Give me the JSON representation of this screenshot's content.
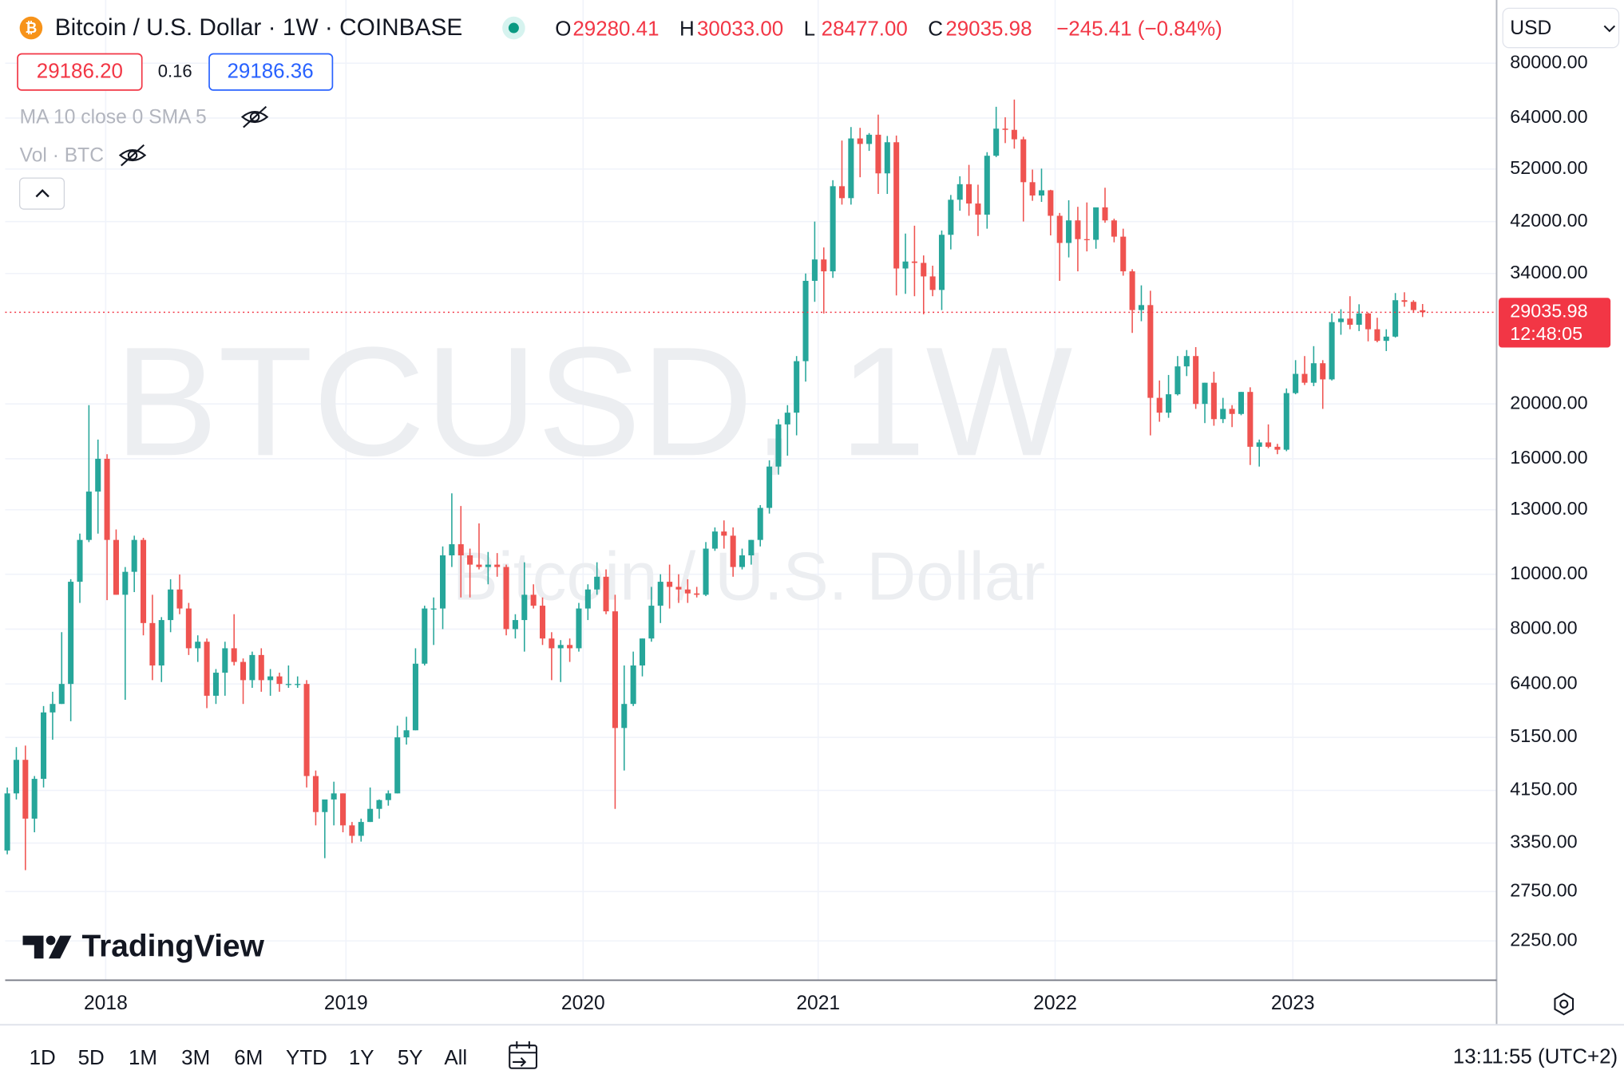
{
  "header": {
    "symbol_icon": "₿",
    "title": "Bitcoin / U.S. Dollar · 1W · COINBASE",
    "ohlc": [
      {
        "key": "O",
        "value": "29280.41"
      },
      {
        "key": "H",
        "value": "30033.00"
      },
      {
        "key": "L",
        "value": "28477.00"
      },
      {
        "key": "C",
        "value": "29035.98"
      }
    ],
    "change": "−245.41 (−0.84%)",
    "currency": "USD",
    "sell": "29186.20",
    "spread": "0.16",
    "buy": "29186.36",
    "indicators": [
      "MA 10 close 0 SMA 5",
      "Vol · BTC"
    ]
  },
  "watermark": {
    "symbol": "BTCUSD, 1W",
    "description": "Bitcoin / U.S. Dollar"
  },
  "logo": "TradingView",
  "chart_data": {
    "type": "candlestick",
    "up_color": "#26a69a",
    "down_color": "#ef5350",
    "log_scale": true,
    "grid": true,
    "countdown": "12:48:05",
    "xlim": [
      -0.23,
      164.16
    ],
    "xticks": [
      {
        "value": 10.85,
        "label": "2018"
      },
      {
        "value": 37.33,
        "label": "2019"
      },
      {
        "value": 63.47,
        "label": "2020"
      },
      {
        "value": 89.38,
        "label": "2021"
      },
      {
        "value": 115.5,
        "label": "2022"
      },
      {
        "value": 141.7,
        "label": "2023"
      }
    ],
    "ylim": [
      1917,
      101300
    ],
    "yticks": [
      {
        "value": 2250,
        "label": "2250.00"
      },
      {
        "value": 2750,
        "label": "2750.00"
      },
      {
        "value": 3350,
        "label": "3350.00"
      },
      {
        "value": 4150,
        "label": "4150.00"
      },
      {
        "value": 5150,
        "label": "5150.00"
      },
      {
        "value": 6400,
        "label": "6400.00"
      },
      {
        "value": 8000,
        "label": "8000.00"
      },
      {
        "value": 10000,
        "label": "10000.00"
      },
      {
        "value": 13000,
        "label": "13000.00"
      },
      {
        "value": 16000,
        "label": "16000.00"
      },
      {
        "value": 20000,
        "label": "20000.00"
      },
      {
        "value": 34000,
        "label": "34000.00"
      },
      {
        "value": 42000,
        "label": "42000.00"
      },
      {
        "value": 52000,
        "label": "52000.00"
      },
      {
        "value": 64000,
        "label": "64000.00"
      },
      {
        "value": 80000,
        "label": "80000.00"
      }
    ],
    "candles": [
      [
        3250,
        4200,
        3200,
        4100
      ],
      [
        4100,
        4950,
        4000,
        4700
      ],
      [
        4700,
        4980,
        3000,
        3700
      ],
      [
        3700,
        4400,
        3500,
        4350
      ],
      [
        4350,
        5850,
        4200,
        5700
      ],
      [
        5700,
        6200,
        5100,
        5900
      ],
      [
        5900,
        7900,
        5900,
        6400
      ],
      [
        6400,
        9800,
        5500,
        9700
      ],
      [
        9700,
        11800,
        8900,
        11500
      ],
      [
        11500,
        19900,
        11400,
        14000
      ],
      [
        14000,
        17300,
        11800,
        16000
      ],
      [
        16000,
        16300,
        9000,
        11500
      ],
      [
        11500,
        12000,
        9200,
        9200
      ],
      [
        9200,
        10300,
        6000,
        10100
      ],
      [
        10100,
        11700,
        9300,
        11500
      ],
      [
        11500,
        11600,
        7800,
        8200
      ],
      [
        8200,
        9200,
        6500,
        6900
      ],
      [
        6900,
        8400,
        6450,
        8300
      ],
      [
        8300,
        9800,
        7900,
        9400
      ],
      [
        9400,
        9990,
        8500,
        8700
      ],
      [
        8700,
        8900,
        7200,
        7400
      ],
      [
        7400,
        7800,
        7000,
        7600
      ],
      [
        7600,
        7700,
        5800,
        6100
      ],
      [
        6100,
        6800,
        5900,
        6700
      ],
      [
        6700,
        7600,
        6100,
        7400
      ],
      [
        7400,
        8500,
        6900,
        7000
      ],
      [
        7000,
        7100,
        5900,
        6500
      ],
      [
        6500,
        7300,
        6300,
        7200
      ],
      [
        7200,
        7400,
        6200,
        6500
      ],
      [
        6500,
        6800,
        6100,
        6600
      ],
      [
        6600,
        6700,
        6200,
        6400
      ],
      [
        6400,
        6900,
        6300,
        6400
      ],
      [
        6400,
        6600,
        6300,
        6400
      ],
      [
        6400,
        6500,
        4200,
        4400
      ],
      [
        4400,
        4500,
        3600,
        3800
      ],
      [
        3800,
        3900,
        3150,
        4000
      ],
      [
        4000,
        4300,
        3600,
        4100
      ],
      [
        4100,
        4100,
        3500,
        3600
      ],
      [
        3600,
        3650,
        3350,
        3450
      ],
      [
        3450,
        3700,
        3370,
        3650
      ],
      [
        3650,
        4200,
        3650,
        3850
      ],
      [
        3850,
        4000,
        3700,
        3990
      ],
      [
        3990,
        4150,
        3900,
        4100
      ],
      [
        4100,
        5400,
        4100,
        5150
      ],
      [
        5150,
        5600,
        5000,
        5300
      ],
      [
        5300,
        7400,
        5300,
        6950
      ],
      [
        6950,
        8800,
        6900,
        8700
      ],
      [
        8700,
        9100,
        7500,
        8700
      ],
      [
        8700,
        11200,
        8000,
        10800
      ],
      [
        10800,
        13900,
        10300,
        11300
      ],
      [
        11300,
        13200,
        9100,
        10800
      ],
      [
        10800,
        11100,
        9100,
        10400
      ],
      [
        10400,
        12300,
        10200,
        10300
      ],
      [
        10300,
        10950,
        9600,
        10400
      ],
      [
        10400,
        10900,
        9900,
        10300
      ],
      [
        10300,
        10400,
        7800,
        8000
      ],
      [
        8000,
        8500,
        7700,
        8300
      ],
      [
        8300,
        10500,
        7300,
        9200
      ],
      [
        9200,
        9600,
        8700,
        8800
      ],
      [
        8800,
        9100,
        7500,
        7700
      ],
      [
        7700,
        7900,
        6500,
        7400
      ],
      [
        7400,
        7650,
        6450,
        7500
      ],
      [
        7500,
        7700,
        7000,
        7400
      ],
      [
        7400,
        8900,
        7300,
        8700
      ],
      [
        8700,
        9600,
        8300,
        9400
      ],
      [
        9400,
        10500,
        9200,
        9900
      ],
      [
        9900,
        10200,
        8500,
        8600
      ],
      [
        8600,
        9200,
        3850,
        5350
      ],
      [
        5350,
        6900,
        4500,
        5900
      ],
      [
        5900,
        7300,
        5850,
        6900
      ],
      [
        6900,
        7700,
        6600,
        7700
      ],
      [
        7700,
        9500,
        7600,
        8800
      ],
      [
        8800,
        10000,
        8200,
        9700
      ],
      [
        9700,
        10400,
        8700,
        9500
      ],
      [
        9500,
        10000,
        8900,
        9400
      ],
      [
        9400,
        9800,
        8900,
        9250
      ],
      [
        9250,
        9500,
        9100,
        9200
      ],
      [
        9200,
        11400,
        9150,
        11100
      ],
      [
        11100,
        12100,
        11000,
        11900
      ],
      [
        11900,
        12450,
        11100,
        11700
      ],
      [
        11700,
        12100,
        9900,
        10300
      ],
      [
        10300,
        11100,
        10200,
        10800
      ],
      [
        10800,
        11500,
        10400,
        11500
      ],
      [
        11500,
        13250,
        11200,
        13100
      ],
      [
        13100,
        15900,
        12800,
        15500
      ],
      [
        15500,
        18800,
        15000,
        18400
      ],
      [
        18400,
        19900,
        16200,
        19300
      ],
      [
        19300,
        24300,
        17600,
        23800
      ],
      [
        23800,
        34000,
        21900,
        33000
      ],
      [
        33000,
        42000,
        30300,
        36000
      ],
      [
        36000,
        37800,
        28900,
        34300
      ],
      [
        34300,
        49700,
        33400,
        48500
      ],
      [
        48500,
        58400,
        45000,
        46200
      ],
      [
        46200,
        61700,
        45000,
        58900
      ],
      [
        58900,
        61500,
        50300,
        57600
      ],
      [
        57600,
        60200,
        56000,
        59800
      ],
      [
        59800,
        64900,
        47000,
        51100
      ],
      [
        51100,
        59500,
        47000,
        58000
      ],
      [
        58000,
        59600,
        31100,
        34700
      ],
      [
        34700,
        40000,
        31300,
        35700
      ],
      [
        35700,
        41300,
        31000,
        35500
      ],
      [
        35500,
        36600,
        28800,
        33600
      ],
      [
        33600,
        35100,
        31000,
        31800
      ],
      [
        31800,
        40500,
        29300,
        39800
      ],
      [
        39800,
        46800,
        37500,
        45900
      ],
      [
        45900,
        50500,
        43900,
        48900
      ],
      [
        48900,
        52900,
        43000,
        45200
      ],
      [
        45200,
        48800,
        39600,
        43200
      ],
      [
        43200,
        55700,
        40800,
        54900
      ],
      [
        54900,
        67000,
        54600,
        61300
      ],
      [
        61300,
        64200,
        57800,
        61000
      ],
      [
        61000,
        69000,
        56500,
        58700
      ],
      [
        58700,
        59300,
        42000,
        49300
      ],
      [
        49300,
        51900,
        45700,
        46700
      ],
      [
        46700,
        52100,
        45500,
        47700
      ],
      [
        47700,
        47800,
        39700,
        43000
      ],
      [
        43000,
        43500,
        33000,
        38500
      ],
      [
        38500,
        45800,
        36300,
        42200
      ],
      [
        42200,
        44600,
        34300,
        39100
      ],
      [
        39100,
        45400,
        37200,
        39000
      ],
      [
        39000,
        44300,
        37600,
        44500
      ],
      [
        44500,
        48200,
        41800,
        42200
      ],
      [
        42200,
        42500,
        38600,
        39500
      ],
      [
        39500,
        40800,
        33700,
        34300
      ],
      [
        34300,
        34600,
        26700,
        29300
      ],
      [
        29300,
        32400,
        28000,
        29900
      ],
      [
        29900,
        31700,
        17600,
        20500
      ],
      [
        20500,
        22000,
        18600,
        19300
      ],
      [
        19300,
        22500,
        18900,
        20800
      ],
      [
        20800,
        24300,
        20700,
        23300
      ],
      [
        23300,
        24900,
        22400,
        24300
      ],
      [
        24300,
        25200,
        19600,
        20000
      ],
      [
        20000,
        21800,
        18500,
        21800
      ],
      [
        21800,
        22800,
        18300,
        18800
      ],
      [
        18800,
        20500,
        18500,
        19600
      ],
      [
        19600,
        19900,
        18200,
        19200
      ],
      [
        19200,
        21000,
        19100,
        21000
      ],
      [
        21000,
        21400,
        15600,
        16800
      ],
      [
        16800,
        17300,
        15500,
        17100
      ],
      [
        17100,
        18400,
        16700,
        16800
      ],
      [
        16800,
        17000,
        16300,
        16600
      ],
      [
        16600,
        21300,
        16500,
        20900
      ],
      [
        20900,
        23900,
        20800,
        22600
      ],
      [
        22600,
        24300,
        21600,
        21800
      ],
      [
        21800,
        25300,
        21500,
        23600
      ],
      [
        23600,
        23900,
        19600,
        22100
      ],
      [
        22100,
        28900,
        22000,
        27900
      ],
      [
        27900,
        29400,
        26500,
        28300
      ],
      [
        28300,
        31000,
        27100,
        27600
      ],
      [
        27600,
        30000,
        26900,
        28900
      ],
      [
        28900,
        29000,
        25800,
        27100
      ],
      [
        27100,
        28400,
        25700,
        25850
      ],
      [
        25850,
        27100,
        24800,
        26300
      ],
      [
        26300,
        31400,
        26200,
        30500
      ],
      [
        30500,
        31500,
        29700,
        30300
      ],
      [
        30300,
        30500,
        29000,
        29300
      ],
      [
        29280.41,
        30033,
        28477,
        29035.98
      ]
    ]
  },
  "toolbar": {
    "timeframes": [
      "1D",
      "5D",
      "1M",
      "3M",
      "6M",
      "YTD",
      "1Y",
      "5Y",
      "All"
    ],
    "clock": "13:11:55 (UTC+2)"
  }
}
